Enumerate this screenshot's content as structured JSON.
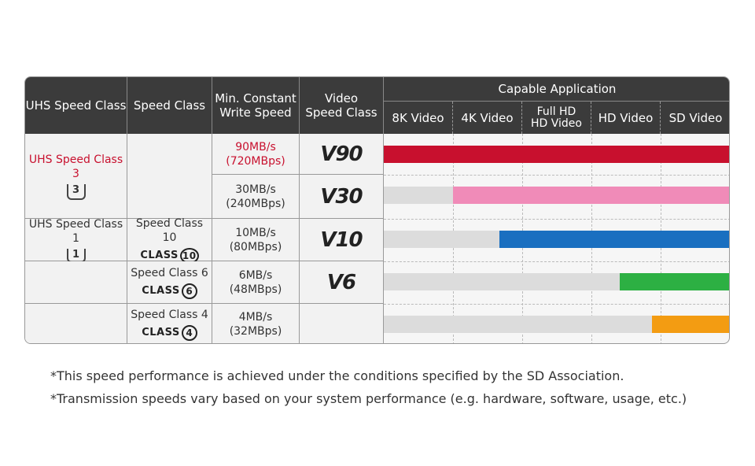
{
  "header": {
    "uhs": "UHS Speed Class",
    "speed": "Speed Class",
    "write": [
      "Min. Constant",
      "Write Speed"
    ],
    "video": [
      "Video",
      "Speed Class"
    ],
    "capable": "Capable Application",
    "apps": [
      [
        "8K Video"
      ],
      [
        "4K Video"
      ],
      [
        "Full HD",
        "HD Video"
      ],
      [
        "HD Video"
      ],
      [
        "SD Video"
      ]
    ]
  },
  "rows": [
    {
      "uhs": "UHS Speed Class 3",
      "uhs_icon": "3",
      "write": [
        "90MB/s",
        "(720MBps)"
      ],
      "video": "V90"
    },
    {
      "write": [
        "30MB/s",
        "(240MBps)"
      ],
      "video": "V30"
    },
    {
      "uhs": "UHS Speed Class 1",
      "uhs_icon": "1",
      "speed": "Speed Class 10",
      "class_word": "CLASS",
      "class_num": "10",
      "write": [
        "10MB/s",
        "(80MBps)"
      ],
      "video": "V10"
    },
    {
      "speed": "Speed Class 6",
      "class_word": "CLASS",
      "class_num": "6",
      "write": [
        "6MB/s",
        "(48MBps)"
      ],
      "video": "V6"
    },
    {
      "speed": "Speed Class 4",
      "class_word": "CLASS",
      "class_num": "4",
      "write": [
        "4MB/s",
        "(32MBps)"
      ]
    }
  ],
  "footnotes": [
    "*This speed performance is achieved under the conditions specified by the SD Association.",
    "*Transmission speeds vary based on your system performance (e.g. hardware, software, usage, etc.)"
  ]
}
